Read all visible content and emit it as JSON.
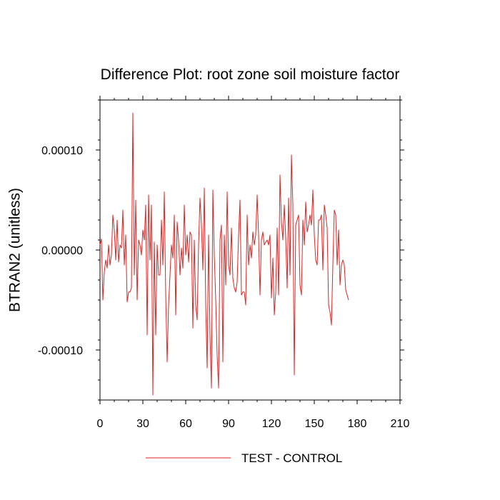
{
  "chart_data": {
    "type": "line",
    "title": "Difference Plot: root zone soil moisture factor",
    "xlabel": "",
    "ylabel": "BTRAN2  (unitless)",
    "xlim": [
      0,
      210
    ],
    "ylim": [
      -0.00015,
      0.00015
    ],
    "x_ticks": [
      0,
      30,
      60,
      90,
      120,
      150,
      180,
      210
    ],
    "x_tick_labels": [
      "0",
      "30",
      "60",
      "90",
      "120",
      "150",
      "180",
      "210"
    ],
    "y_ticks": [
      0.0001,
      0.0,
      -0.0001
    ],
    "y_tick_labels": [
      "0.00010",
      "0.00000",
      "-0.00010"
    ],
    "grid": false,
    "legend_position": "bottom-center",
    "line_color": "#e32222",
    "series": [
      {
        "name": "TEST - CONTROL",
        "x_start": 0,
        "x_step": 1,
        "values": [
          5e-06,
          1.1e-05,
          -5e-05,
          -2.2e-05,
          -1e-05,
          -1.8e-05,
          5e-06,
          -1.5e-05,
          -5e-06,
          3.5e-05,
          2e-05,
          -1e-05,
          3e-05,
          -1.2e-05,
          5e-06,
          2e-06,
          4e-05,
          -1.5e-05,
          1.5e-05,
          -5.2e-05,
          -4.2e-05,
          -4.2e-05,
          -3.8e-05,
          0.000137,
          -2.5e-05,
          5e-05,
          -5e-05,
          1e-05,
          5e-06,
          -5e-06,
          2e-05,
          1e-05,
          4.5e-05,
          -8.5e-05,
          5.5e-05,
          -1e-05,
          4.5e-05,
          -0.000145,
          8e-06,
          -8.5e-05,
          5e-06,
          -2.5e-05,
          -2.5e-05,
          3e-05,
          -1.5e-05,
          5.8e-05,
          -4.5e-05,
          -0.000112,
          -5.5e-05,
          -2.5e-05,
          5e-06,
          -8e-06,
          3.5e-05,
          -6.5e-05,
          2.8e-05,
          1e-05,
          -2.5e-05,
          2e-06,
          -1.8e-05,
          4.5e-05,
          -5e-06,
          1.5e-05,
          -1.2e-05,
          1.8e-05,
          1.5e-05,
          -7.8e-05,
          1e-05,
          -5.5e-05,
          -7e-05,
          5e-06,
          5.2e-05,
          2.5e-05,
          -2e-05,
          6.2e-05,
          -5.5e-05,
          -0.000118,
          1.5e-05,
          -8.5e-05,
          -0.000138,
          6e-05,
          -5e-06,
          -5e-05,
          -0.000105,
          -0.000138,
          1e-05,
          2.5e-05,
          -0.000112,
          1.5e-05,
          -3.5e-05,
          5.8e-05,
          -1.5e-05,
          -2.5e-05,
          2.2e-05,
          -2.8e-05,
          -3.8e-05,
          -4.2e-05,
          -3.2e-05,
          1.5e-05,
          5e-05,
          -4.5e-05,
          -4.2e-05,
          -4.2e-05,
          -5.5e-05,
          3.5e-05,
          -1.5e-05,
          5e-06,
          -8e-06,
          1.8e-05,
          5e-06,
          1.5e-05,
          5.5e-05,
          1.5e-05,
          -4.5e-05,
          1e-05,
          1.8e-05,
          5e-06,
          8e-06,
          1e-05,
          5e-06,
          1.5e-05,
          -4.8e-05,
          -8e-06,
          -6.5e-05,
          -4.2e-05,
          2.2e-05,
          -4.5e-05,
          7.5e-05,
          2.8e-05,
          1e-05,
          4.5e-05,
          1.2e-05,
          -3.8e-05,
          5.2e-05,
          -2.5e-05,
          9.5e-05,
          4.5e-05,
          -0.000125,
          2.5e-05,
          3e-05,
          3.5e-05,
          -3.5e-05,
          -4.5e-05,
          3e-05,
          5e-06,
          4.8e-05,
          1.8e-05,
          2.5e-05,
          3.5e-05,
          2.5e-05,
          6e-05,
          1.5e-05,
          -1e-05,
          -1.5e-05,
          3e-05,
          3e-05,
          3.5e-05,
          -2e-05,
          4.5e-05,
          3.5e-05,
          2.2e-05,
          -5.5e-05,
          -6.2e-05,
          -7.5e-05,
          -1.5e-05,
          4e-05,
          3.5e-05,
          -1.5e-05,
          2e-05,
          -3.5e-05,
          -1.5e-05,
          -1e-05,
          -1.5e-05,
          -4e-05,
          -4.5e-05,
          -5e-05
        ]
      }
    ]
  }
}
